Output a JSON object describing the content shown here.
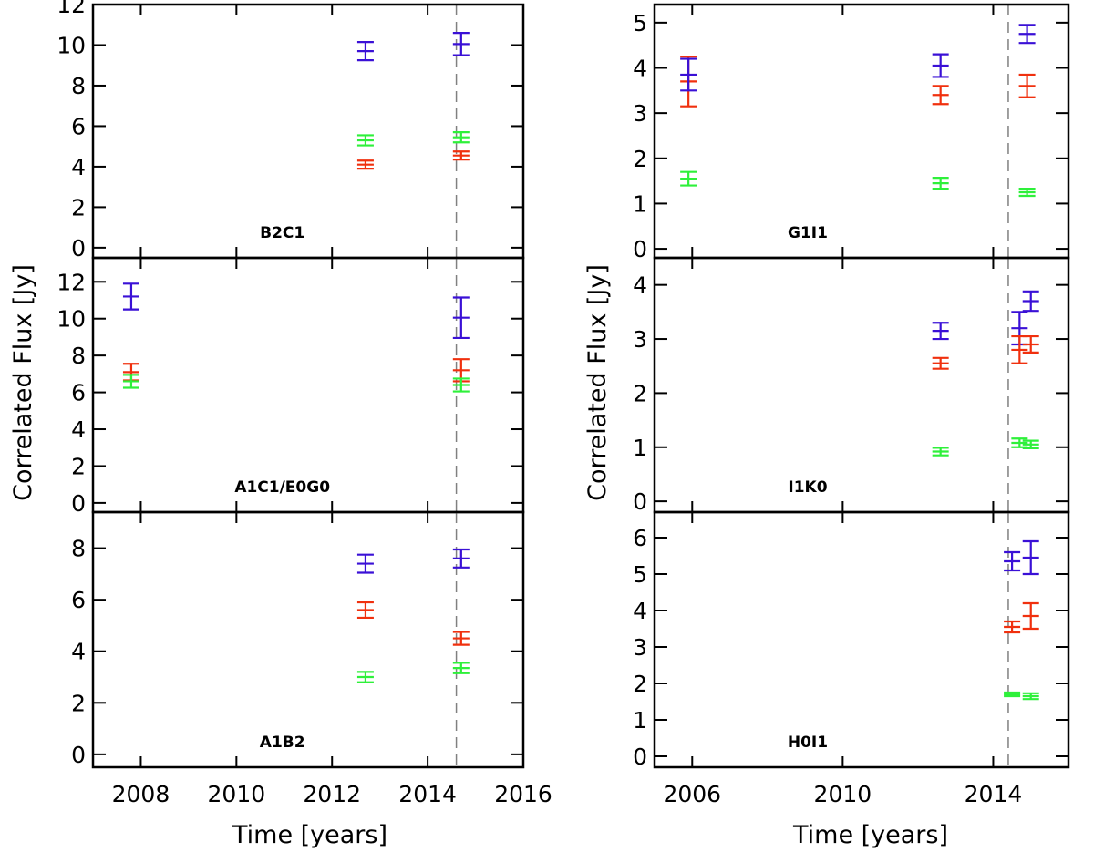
{
  "colors": {
    "blue": "#3a10d6",
    "red": "#f0300e",
    "green": "#2ef03a",
    "guide": "#808080",
    "axis": "#000000"
  },
  "chart_data": [
    {
      "type": "scatter",
      "label": "B2C1",
      "ylabel": "Correlated Flux [Jy]",
      "xlabel": "Time [years]",
      "xlim": [
        2007,
        2016
      ],
      "ylim": [
        -0.5,
        12
      ],
      "yticks": [
        "0",
        "2",
        "4",
        "6",
        "8",
        "10",
        "12"
      ],
      "xticks": [
        "2008",
        "2010",
        "2012",
        "2014",
        "2016"
      ],
      "guide_x": 2014.6,
      "series": [
        {
          "name": "blue",
          "points": [
            {
              "x": 2012.7,
              "y": 9.7,
              "err": 0.45
            },
            {
              "x": 2014.7,
              "y": 10.05,
              "err": 0.55
            }
          ]
        },
        {
          "name": "green",
          "points": [
            {
              "x": 2012.7,
              "y": 5.3,
              "err": 0.25
            },
            {
              "x": 2014.7,
              "y": 5.45,
              "err": 0.25
            }
          ]
        },
        {
          "name": "red",
          "points": [
            {
              "x": 2012.7,
              "y": 4.1,
              "err": 0.2
            },
            {
              "x": 2014.7,
              "y": 4.55,
              "err": 0.2
            }
          ]
        }
      ]
    },
    {
      "type": "scatter",
      "label": "A1C1/E0G0",
      "xlim": [
        2007,
        2016
      ],
      "ylim": [
        -0.5,
        13.3
      ],
      "yticks": [
        "0",
        "2",
        "4",
        "6",
        "8",
        "10",
        "12"
      ],
      "guide_x": 2014.6,
      "series": [
        {
          "name": "blue",
          "points": [
            {
              "x": 2007.8,
              "y": 11.2,
              "err": 0.7
            },
            {
              "x": 2014.7,
              "y": 10.05,
              "err": 1.1
            }
          ]
        },
        {
          "name": "red",
          "points": [
            {
              "x": 2007.8,
              "y": 7.1,
              "err": 0.45
            },
            {
              "x": 2014.7,
              "y": 7.2,
              "err": 0.6
            }
          ]
        },
        {
          "name": "green",
          "points": [
            {
              "x": 2007.8,
              "y": 6.6,
              "err": 0.35
            },
            {
              "x": 2014.7,
              "y": 6.4,
              "err": 0.35
            }
          ]
        }
      ]
    },
    {
      "type": "scatter",
      "label": "A1B2",
      "xlim": [
        2007,
        2016
      ],
      "ylim": [
        -0.5,
        9.4
      ],
      "yticks": [
        "0",
        "2",
        "4",
        "6",
        "8"
      ],
      "guide_x": 2014.6,
      "series": [
        {
          "name": "blue",
          "points": [
            {
              "x": 2012.7,
              "y": 7.4,
              "err": 0.35
            },
            {
              "x": 2014.7,
              "y": 7.6,
              "err": 0.35
            }
          ]
        },
        {
          "name": "red",
          "points": [
            {
              "x": 2012.7,
              "y": 5.6,
              "err": 0.3
            },
            {
              "x": 2014.7,
              "y": 4.5,
              "err": 0.25
            }
          ]
        },
        {
          "name": "green",
          "points": [
            {
              "x": 2012.7,
              "y": 3.0,
              "err": 0.2
            },
            {
              "x": 2014.7,
              "y": 3.35,
              "err": 0.2
            }
          ]
        }
      ]
    },
    {
      "type": "scatter",
      "label": "G1I1",
      "ylabel": "Correlated Flux [Jy]",
      "xlabel": "Time [years]",
      "xlim": [
        2005,
        2016
      ],
      "ylim": [
        -0.2,
        5.4
      ],
      "yticks": [
        "0",
        "1",
        "2",
        "3",
        "4",
        "5"
      ],
      "xticks": [
        "2006",
        "2010",
        "2014"
      ],
      "guide_x": 2014.4,
      "series": [
        {
          "name": "red",
          "points": [
            {
              "x": 2005.9,
              "y": 3.7,
              "err": 0.55
            },
            {
              "x": 2012.6,
              "y": 3.4,
              "err": 0.2
            },
            {
              "x": 2014.9,
              "y": 3.6,
              "err": 0.25
            }
          ]
        },
        {
          "name": "blue",
          "points": [
            {
              "x": 2005.9,
              "y": 3.85,
              "err": 0.35
            },
            {
              "x": 2012.6,
              "y": 4.05,
              "err": 0.25
            },
            {
              "x": 2014.9,
              "y": 4.75,
              "err": 0.2
            }
          ]
        },
        {
          "name": "green",
          "points": [
            {
              "x": 2005.9,
              "y": 1.55,
              "err": 0.15
            },
            {
              "x": 2012.6,
              "y": 1.45,
              "err": 0.12
            },
            {
              "x": 2014.9,
              "y": 1.25,
              "err": 0.08
            }
          ]
        }
      ]
    },
    {
      "type": "scatter",
      "label": "I1K0",
      "xlim": [
        2005,
        2016
      ],
      "ylim": [
        -0.2,
        4.5
      ],
      "yticks": [
        "0",
        "1",
        "2",
        "3",
        "4"
      ],
      "guide_x": 2014.4,
      "series": [
        {
          "name": "blue",
          "points": [
            {
              "x": 2012.6,
              "y": 3.15,
              "err": 0.15
            },
            {
              "x": 2014.7,
              "y": 3.2,
              "err": 0.3
            },
            {
              "x": 2015.0,
              "y": 3.7,
              "err": 0.18
            }
          ]
        },
        {
          "name": "red",
          "points": [
            {
              "x": 2012.6,
              "y": 2.55,
              "err": 0.1
            },
            {
              "x": 2014.7,
              "y": 2.8,
              "err": 0.25
            },
            {
              "x": 2015.0,
              "y": 2.9,
              "err": 0.15
            }
          ]
        },
        {
          "name": "green",
          "points": [
            {
              "x": 2012.6,
              "y": 0.92,
              "err": 0.07
            },
            {
              "x": 2014.7,
              "y": 1.08,
              "err": 0.08
            },
            {
              "x": 2015.0,
              "y": 1.05,
              "err": 0.07
            }
          ]
        }
      ]
    },
    {
      "type": "scatter",
      "label": "H0I1",
      "xlim": [
        2005,
        2016
      ],
      "ylim": [
        -0.3,
        6.7
      ],
      "yticks": [
        "0",
        "1",
        "2",
        "3",
        "4",
        "5",
        "6"
      ],
      "guide_x": 2014.4,
      "series": [
        {
          "name": "blue",
          "points": [
            {
              "x": 2014.5,
              "y": 5.35,
              "err": 0.25
            },
            {
              "x": 2015.0,
              "y": 5.45,
              "err": 0.45
            }
          ]
        },
        {
          "name": "red",
          "points": [
            {
              "x": 2014.5,
              "y": 3.55,
              "err": 0.15
            },
            {
              "x": 2015.0,
              "y": 3.85,
              "err": 0.35
            }
          ]
        },
        {
          "name": "green",
          "points": [
            {
              "x": 2014.5,
              "y": 1.7,
              "err": 0.05
            },
            {
              "x": 2015.0,
              "y": 1.65,
              "err": 0.08
            }
          ]
        }
      ]
    }
  ]
}
